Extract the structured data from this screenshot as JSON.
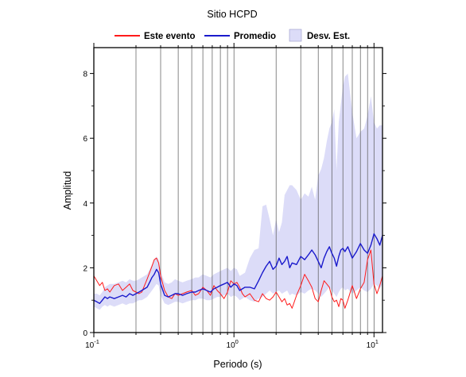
{
  "chart_data": {
    "type": "line",
    "title": "Sitio HCPD",
    "xlabel": "Periodo (s)",
    "ylabel": "Amplitud",
    "x_scale": "log",
    "xlim": [
      0.1,
      11.5
    ],
    "ylim": [
      0,
      8.8
    ],
    "x_ticks": [
      {
        "value": 0.1,
        "base": "10",
        "exp": "-1"
      },
      {
        "value": 1,
        "base": "10",
        "exp": "0"
      },
      {
        "value": 10,
        "base": "10",
        "exp": "1"
      }
    ],
    "y_ticks": [
      0,
      2,
      4,
      6,
      8
    ],
    "y_tick_labels": [
      "0",
      "2",
      "4",
      "6",
      "8"
    ],
    "grid": "vertical",
    "legend": {
      "position": "top",
      "entries": [
        {
          "label": "Este evento",
          "color": "#ff1a1a",
          "kind": "line"
        },
        {
          "label": "Promedio",
          "color": "#1a1acc",
          "kind": "line"
        },
        {
          "label": "Desv. Est.",
          "color": "#dcdcf8",
          "kind": "patch"
        }
      ]
    },
    "colors": {
      "event": "#ff1a1a",
      "mean": "#1a1acc",
      "band_fill": "#dcdcf8"
    },
    "series": [
      {
        "name": "Este evento",
        "x": [
          0.1,
          0.105,
          0.11,
          0.115,
          0.12,
          0.125,
          0.13,
          0.14,
          0.15,
          0.16,
          0.17,
          0.18,
          0.19,
          0.2,
          0.21,
          0.22,
          0.23,
          0.24,
          0.25,
          0.26,
          0.27,
          0.28,
          0.29,
          0.3,
          0.32,
          0.34,
          0.36,
          0.38,
          0.4,
          0.43,
          0.46,
          0.5,
          0.53,
          0.56,
          0.6,
          0.64,
          0.68,
          0.72,
          0.76,
          0.8,
          0.85,
          0.9,
          0.95,
          1.0,
          1.05,
          1.1,
          1.15,
          1.2,
          1.3,
          1.4,
          1.5,
          1.6,
          1.7,
          1.8,
          1.9,
          2.0,
          2.1,
          2.2,
          2.3,
          2.4,
          2.5,
          2.6,
          2.8,
          3.0,
          3.2,
          3.4,
          3.6,
          3.8,
          4.0,
          4.2,
          4.4,
          4.6,
          4.8,
          5.0,
          5.2,
          5.4,
          5.6,
          5.8,
          6.0,
          6.2,
          6.5,
          7.0,
          7.5,
          8.0,
          8.5,
          9.0,
          9.5,
          10.0,
          10.5,
          11.0,
          11.5
        ],
        "y": [
          1.75,
          1.6,
          1.45,
          1.55,
          1.3,
          1.35,
          1.25,
          1.45,
          1.5,
          1.3,
          1.4,
          1.5,
          1.3,
          1.25,
          1.2,
          1.25,
          1.45,
          1.65,
          1.85,
          2.05,
          2.25,
          2.3,
          2.15,
          1.75,
          1.3,
          1.1,
          1.05,
          1.2,
          1.15,
          1.2,
          1.25,
          1.3,
          1.15,
          1.2,
          1.4,
          1.3,
          1.15,
          1.45,
          1.3,
          1.2,
          1.05,
          1.25,
          1.6,
          1.5,
          1.55,
          1.4,
          1.2,
          1.1,
          1.2,
          1.0,
          0.95,
          1.2,
          1.05,
          1.0,
          1.1,
          1.25,
          1.1,
          0.95,
          1.05,
          0.85,
          0.9,
          0.75,
          1.15,
          1.45,
          1.8,
          1.6,
          1.4,
          1.05,
          0.95,
          1.3,
          1.6,
          1.5,
          1.4,
          1.1,
          0.95,
          1.0,
          0.8,
          1.05,
          1.0,
          0.75,
          1.0,
          1.45,
          1.05,
          1.35,
          1.55,
          2.25,
          2.55,
          1.5,
          1.2,
          1.45,
          1.75
        ]
      },
      {
        "name": "Promedio",
        "x": [
          0.1,
          0.105,
          0.11,
          0.115,
          0.12,
          0.125,
          0.13,
          0.14,
          0.15,
          0.16,
          0.17,
          0.18,
          0.19,
          0.2,
          0.21,
          0.22,
          0.23,
          0.24,
          0.25,
          0.26,
          0.27,
          0.28,
          0.29,
          0.3,
          0.32,
          0.34,
          0.36,
          0.38,
          0.4,
          0.43,
          0.46,
          0.5,
          0.53,
          0.56,
          0.6,
          0.64,
          0.68,
          0.72,
          0.76,
          0.8,
          0.85,
          0.9,
          0.95,
          1.0,
          1.05,
          1.1,
          1.15,
          1.2,
          1.3,
          1.4,
          1.5,
          1.6,
          1.7,
          1.8,
          1.9,
          2.0,
          2.1,
          2.2,
          2.3,
          2.4,
          2.5,
          2.6,
          2.8,
          3.0,
          3.2,
          3.4,
          3.6,
          3.8,
          4.0,
          4.2,
          4.4,
          4.6,
          4.8,
          5.0,
          5.2,
          5.4,
          5.6,
          5.8,
          6.0,
          6.2,
          6.5,
          7.0,
          7.5,
          8.0,
          8.5,
          9.0,
          9.5,
          10.0,
          10.5,
          11.0,
          11.5
        ],
        "y": [
          1.0,
          0.95,
          0.9,
          1.0,
          1.1,
          1.05,
          1.1,
          1.05,
          1.1,
          1.15,
          1.1,
          1.2,
          1.15,
          1.2,
          1.25,
          1.3,
          1.35,
          1.4,
          1.55,
          1.7,
          1.8,
          1.95,
          1.85,
          1.5,
          1.15,
          1.1,
          1.15,
          1.2,
          1.2,
          1.15,
          1.2,
          1.25,
          1.25,
          1.3,
          1.35,
          1.3,
          1.25,
          1.35,
          1.4,
          1.45,
          1.5,
          1.55,
          1.4,
          1.5,
          1.45,
          1.3,
          1.35,
          1.4,
          1.4,
          1.35,
          1.6,
          1.85,
          2.05,
          2.2,
          1.95,
          2.05,
          2.3,
          2.1,
          2.2,
          2.35,
          2.0,
          2.15,
          2.1,
          2.35,
          2.25,
          2.4,
          2.55,
          2.4,
          2.2,
          2.0,
          2.3,
          2.5,
          2.65,
          2.45,
          2.3,
          2.05,
          2.35,
          2.55,
          2.6,
          2.5,
          2.65,
          2.3,
          2.5,
          2.75,
          2.55,
          2.45,
          2.7,
          3.05,
          2.9,
          2.7,
          3.0
        ]
      },
      {
        "name": "Desv. Est.",
        "x": [
          0.1,
          0.105,
          0.11,
          0.115,
          0.12,
          0.125,
          0.13,
          0.14,
          0.15,
          0.16,
          0.17,
          0.18,
          0.19,
          0.2,
          0.21,
          0.22,
          0.23,
          0.24,
          0.25,
          0.26,
          0.27,
          0.28,
          0.29,
          0.3,
          0.32,
          0.34,
          0.36,
          0.38,
          0.4,
          0.43,
          0.46,
          0.5,
          0.53,
          0.56,
          0.6,
          0.64,
          0.68,
          0.72,
          0.76,
          0.8,
          0.85,
          0.9,
          0.95,
          1.0,
          1.05,
          1.1,
          1.15,
          1.2,
          1.3,
          1.4,
          1.5,
          1.6,
          1.7,
          1.8,
          1.9,
          2.0,
          2.1,
          2.2,
          2.3,
          2.4,
          2.5,
          2.6,
          2.8,
          3.0,
          3.2,
          3.4,
          3.6,
          3.8,
          4.0,
          4.2,
          4.4,
          4.6,
          4.8,
          5.0,
          5.2,
          5.4,
          5.6,
          5.8,
          6.0,
          6.2,
          6.5,
          7.0,
          7.5,
          8.0,
          8.5,
          9.0,
          9.5,
          10.0,
          10.5,
          11.0,
          11.5
        ],
        "upper": [
          1.2,
          1.2,
          1.15,
          1.25,
          1.4,
          1.45,
          1.5,
          1.5,
          1.55,
          1.6,
          1.55,
          1.65,
          1.6,
          1.6,
          1.65,
          1.7,
          1.75,
          1.8,
          1.95,
          2.1,
          2.25,
          2.35,
          2.25,
          1.9,
          1.55,
          1.5,
          1.55,
          1.65,
          1.6,
          1.55,
          1.6,
          1.65,
          1.7,
          1.7,
          1.8,
          1.75,
          1.7,
          1.8,
          1.85,
          1.9,
          1.95,
          2.0,
          1.9,
          2.0,
          1.95,
          1.75,
          1.8,
          1.85,
          2.3,
          2.55,
          2.6,
          3.9,
          3.95,
          3.5,
          3.0,
          3.5,
          3.1,
          3.4,
          4.25,
          4.4,
          4.55,
          4.55,
          4.4,
          4.1,
          4.3,
          4.2,
          4.5,
          4.1,
          4.85,
          5.05,
          5.4,
          5.9,
          6.3,
          6.5,
          6.9,
          5.0,
          6.5,
          7.05,
          7.6,
          7.9,
          8.0,
          6.8,
          6.0,
          6.2,
          6.3,
          6.7,
          7.3,
          6.5,
          6.3,
          6.4,
          6.4
        ],
        "lower": [
          0.8,
          0.75,
          0.7,
          0.8,
          0.85,
          0.8,
          0.85,
          0.8,
          0.85,
          0.9,
          0.85,
          0.9,
          0.9,
          0.95,
          1.0,
          1.0,
          1.05,
          1.1,
          1.2,
          1.3,
          1.4,
          1.5,
          1.45,
          1.15,
          0.9,
          0.85,
          0.9,
          0.95,
          0.95,
          0.9,
          0.95,
          1.0,
          1.0,
          1.05,
          1.05,
          1.0,
          1.0,
          1.05,
          1.1,
          1.1,
          1.15,
          1.2,
          1.1,
          1.15,
          1.1,
          1.0,
          1.05,
          1.1,
          1.0,
          0.95,
          1.05,
          1.1,
          1.2,
          1.3,
          1.2,
          1.25,
          1.3,
          1.2,
          1.25,
          1.3,
          1.15,
          1.2,
          1.15,
          1.25,
          1.2,
          1.3,
          1.35,
          1.3,
          1.2,
          1.1,
          1.2,
          1.3,
          1.4,
          1.3,
          1.2,
          1.1,
          1.25,
          1.35,
          1.4,
          1.3,
          1.35,
          1.2,
          1.3,
          1.4,
          1.3,
          1.25,
          1.35,
          1.5,
          1.45,
          1.35,
          1.5
        ]
      }
    ]
  }
}
